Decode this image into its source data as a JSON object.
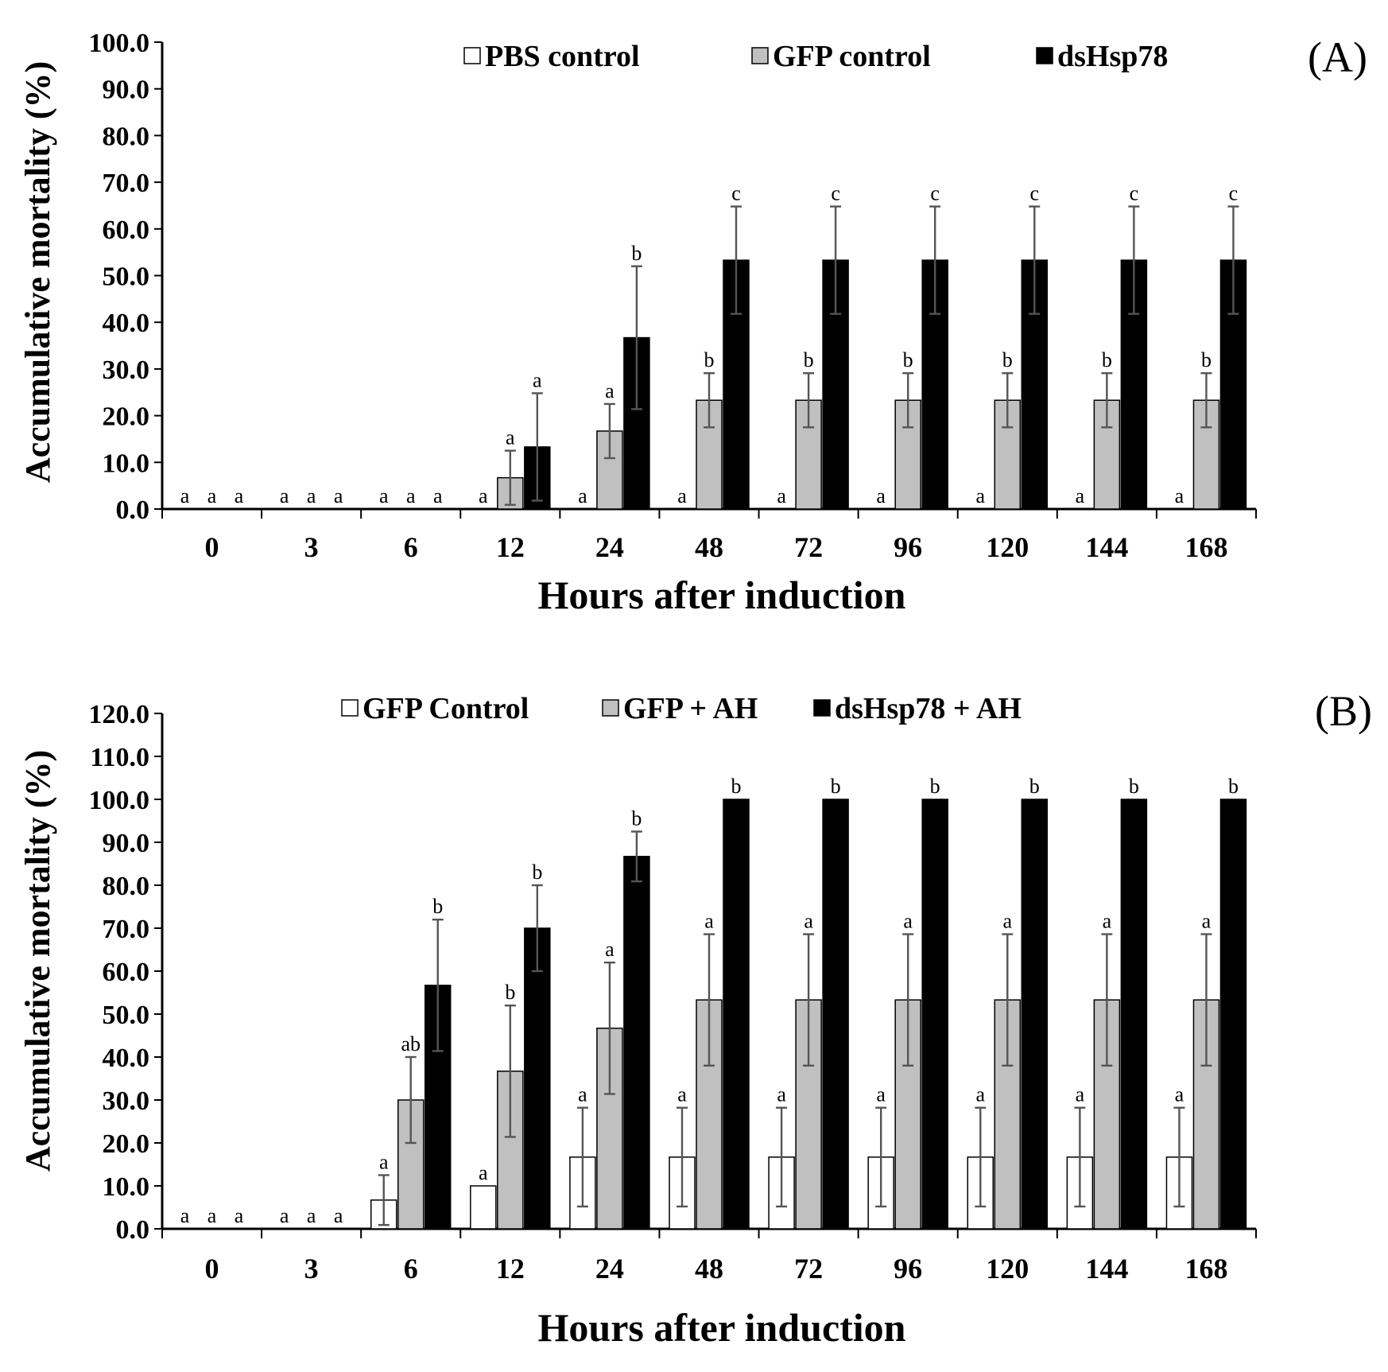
{
  "chart_data": [
    {
      "type": "bar",
      "panel_label": "(A)",
      "title": "",
      "xlabel": "Hours after induction",
      "ylabel": "Accumulative mortality (%)",
      "ylim": [
        0,
        100
      ],
      "ystep": 10,
      "ytick_labels": [
        "0.0",
        "10.0",
        "20.0",
        "30.0",
        "40.0",
        "50.0",
        "60.0",
        "70.0",
        "80.0",
        "90.0",
        "100.0"
      ],
      "categories": [
        "0",
        "3",
        "6",
        "12",
        "24",
        "48",
        "72",
        "96",
        "120",
        "144",
        "168"
      ],
      "legend_position": "top",
      "series": [
        {
          "name": "PBS control",
          "color": "#ffffff",
          "values": [
            0,
            0,
            0,
            0,
            0,
            0,
            0,
            0,
            0,
            0,
            0
          ],
          "errors": [
            0,
            0,
            0,
            0,
            0,
            0,
            0,
            0,
            0,
            0,
            0
          ],
          "labels": [
            "a",
            "a",
            "a",
            "a",
            "a",
            "a",
            "a",
            "a",
            "a",
            "a",
            "a"
          ]
        },
        {
          "name": "GFP control",
          "color": "#c0c0c0",
          "values": [
            0,
            0,
            0,
            6.7,
            16.7,
            23.3,
            23.3,
            23.3,
            23.3,
            23.3,
            23.3
          ],
          "errors": [
            0,
            0,
            0,
            5.8,
            5.8,
            5.8,
            5.8,
            5.8,
            5.8,
            5.8,
            5.8
          ],
          "labels": [
            "a",
            "a",
            "a",
            "a",
            "a",
            "b",
            "b",
            "b",
            "b",
            "b",
            "b"
          ]
        },
        {
          "name": "dsHsp78",
          "color": "#000000",
          "values": [
            0,
            0,
            0,
            13.3,
            36.7,
            53.3,
            53.3,
            53.3,
            53.3,
            53.3,
            53.3
          ],
          "errors": [
            0,
            0,
            0,
            11.5,
            15.3,
            11.5,
            11.5,
            11.5,
            11.5,
            11.5,
            11.5
          ],
          "labels": [
            "a",
            "a",
            "a",
            "a",
            "b",
            "c",
            "c",
            "c",
            "c",
            "c",
            "c"
          ]
        }
      ]
    },
    {
      "type": "bar",
      "panel_label": "(B)",
      "title": "",
      "xlabel": "Hours after induction",
      "ylabel": "Accumulative mortality (%)",
      "ylim": [
        0,
        120
      ],
      "ystep": 10,
      "ytick_labels": [
        "0.0",
        "10.0",
        "20.0",
        "30.0",
        "40.0",
        "50.0",
        "60.0",
        "70.0",
        "80.0",
        "90.0",
        "100.0",
        "110.0",
        "120.0"
      ],
      "categories": [
        "0",
        "3",
        "6",
        "12",
        "24",
        "48",
        "72",
        "96",
        "120",
        "144",
        "168"
      ],
      "legend_position": "top",
      "series": [
        {
          "name": "GFP Control",
          "color": "#ffffff",
          "values": [
            0,
            0,
            6.7,
            10,
            16.7,
            16.7,
            16.7,
            16.7,
            16.7,
            16.7,
            16.7
          ],
          "errors": [
            0,
            0,
            5.8,
            0,
            11.5,
            11.5,
            11.5,
            11.5,
            11.5,
            11.5,
            11.5
          ],
          "labels": [
            "a",
            "a",
            "a",
            "a",
            "a",
            "a",
            "a",
            "a",
            "a",
            "a",
            "a"
          ]
        },
        {
          "name": "GFP + AH",
          "color": "#c0c0c0",
          "values": [
            0,
            0,
            30,
            36.7,
            46.7,
            53.3,
            53.3,
            53.3,
            53.3,
            53.3,
            53.3
          ],
          "errors": [
            0,
            0,
            10,
            15.3,
            15.3,
            15.3,
            15.3,
            15.3,
            15.3,
            15.3,
            15.3
          ],
          "labels": [
            "a",
            "a",
            "ab",
            "b",
            "a",
            "a",
            "a",
            "a",
            "a",
            "a",
            "a"
          ]
        },
        {
          "name": "dsHsp78 + AH",
          "color": "#000000",
          "values": [
            0,
            0,
            56.7,
            70,
            86.7,
            100,
            100,
            100,
            100,
            100,
            100
          ],
          "errors": [
            0,
            0,
            15.3,
            10,
            5.8,
            0,
            0,
            0,
            0,
            0,
            0
          ],
          "labels": [
            "a",
            "a",
            "b",
            "b",
            "b",
            "b",
            "b",
            "b",
            "b",
            "b",
            "b"
          ]
        }
      ]
    }
  ]
}
